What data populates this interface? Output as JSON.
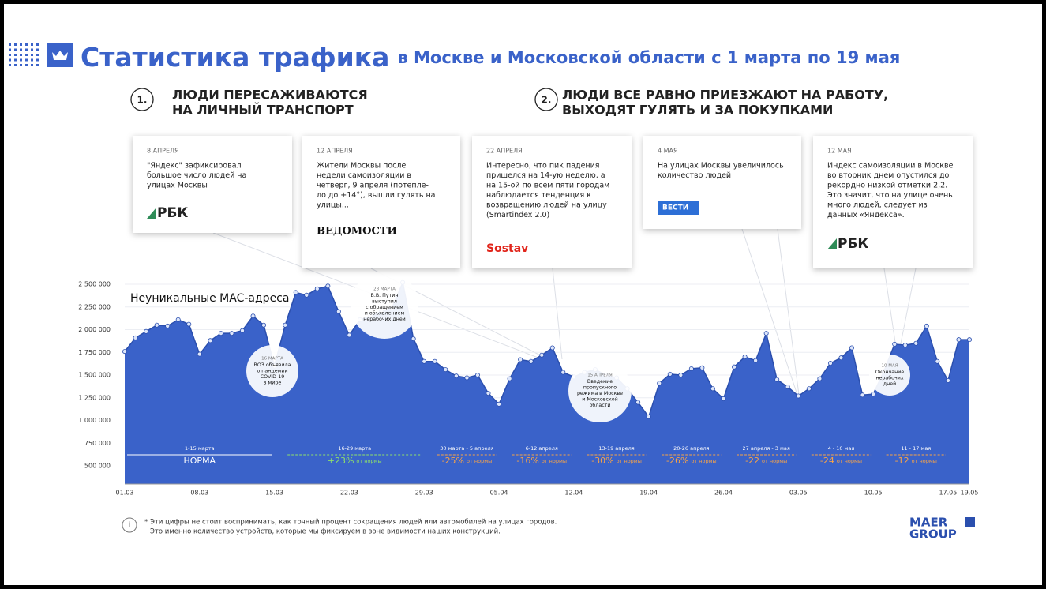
{
  "header": {
    "title": "Статистика трафика",
    "subtitle": "в Москве и Московской области с 1 марта по 19 мая"
  },
  "sections": [
    {
      "number": "1.",
      "lines": [
        "ЛЮДИ ПЕРЕСАЖИВАЮТСЯ",
        "НА ЛИЧНЫЙ ТРАНСПОРТ"
      ]
    },
    {
      "number": "2.",
      "lines": [
        "ЛЮДИ ВСЕ РАВНО ПРИЕЗЖАЮТ НА РАБОТУ,",
        "ВЫХОДЯТ ГУЛЯТЬ И ЗА ПОКУПКАМИ"
      ]
    }
  ],
  "cards": [
    {
      "date": "8 АПРЕЛЯ",
      "lines": [
        "\"Яндекс\" зафиксировал",
        "большое число людей на",
        "улицах Москвы"
      ],
      "source": "РБК"
    },
    {
      "date": "12 АПРЕЛЯ",
      "lines": [
        "Жители Москвы после",
        "недели самоизоляции в",
        "четверг, 9 апреля (потепле-",
        "ло до +14°), вышли гулять на",
        "улицы..."
      ],
      "source": "ВЕДОМОСТИ"
    },
    {
      "date": "22 АПРЕЛЯ",
      "lines": [
        "Интересно, что пик падения",
        "пришелся на 14-ую неделю, а",
        "на 15-ой по всем пяти городам",
        "наблюдается тенденция к",
        "возвращению людей на улицу",
        "(Smartindex 2.0)"
      ],
      "source": "Sostav"
    },
    {
      "date": "4 МАЯ",
      "lines": [
        "На улицах Москвы увеличилось",
        "количество людей"
      ],
      "source": "ВЕСТИ"
    },
    {
      "date": "12 МАЯ",
      "lines": [
        "Индекс самоизоляции в Москве",
        "во вторник днем опустился до",
        "рекордно низкой отметки 2,2.",
        "Это значит, что на улице очень",
        "много людей, следует из",
        "данных «Яндекса»."
      ],
      "source": "РБК"
    }
  ],
  "chart_data": {
    "type": "area",
    "categories": [
      "01.03",
      null,
      null,
      null,
      null,
      null,
      null,
      "08.03",
      null,
      null,
      null,
      null,
      null,
      null,
      "15.03",
      null,
      null,
      null,
      null,
      null,
      null,
      "22.03",
      null,
      null,
      null,
      null,
      null,
      null,
      "29.03",
      null,
      null,
      null,
      null,
      null,
      null,
      "05.04",
      null,
      null,
      null,
      null,
      null,
      null,
      "12.04",
      null,
      null,
      null,
      null,
      null,
      null,
      "19.04",
      null,
      null,
      null,
      null,
      null,
      null,
      "26.04",
      null,
      null,
      null,
      null,
      null,
      null,
      "03.05",
      null,
      null,
      null,
      null,
      null,
      null,
      "10.05",
      null,
      null,
      null,
      null,
      null,
      null,
      "17.05",
      null,
      "19.05"
    ],
    "series": [
      {
        "name": "Неуникальные MAC-адреса",
        "color": "#3a62c9",
        "values": [
          1760000,
          1910000,
          1980000,
          2050000,
          2040000,
          2110000,
          2060000,
          1730000,
          1880000,
          1960000,
          1960000,
          1990000,
          2150000,
          2050000,
          1600000,
          2050000,
          2410000,
          2380000,
          2450000,
          2480000,
          2200000,
          1940000,
          2110000,
          2150000,
          2200000,
          2240000,
          2520000,
          1900000,
          1650000,
          1650000,
          1560000,
          1490000,
          1470000,
          1500000,
          1300000,
          1180000,
          1460000,
          1670000,
          1650000,
          1720000,
          1800000,
          1530000,
          1480000,
          1530000,
          1560000,
          1500000,
          1470000,
          1350000,
          1200000,
          1040000,
          1410000,
          1510000,
          1500000,
          1570000,
          1580000,
          1350000,
          1240000,
          1590000,
          1700000,
          1660000,
          1960000,
          1450000,
          1370000,
          1270000,
          1350000,
          1460000,
          1630000,
          1690000,
          1800000,
          1280000,
          1290000,
          1540000,
          1840000,
          1830000,
          1850000,
          2040000,
          1650000,
          1440000,
          1890000,
          1890000
        ]
      }
    ],
    "ylim": [
      300000,
      2600000
    ],
    "yticks": [
      {
        "value": 500000,
        "label": "500 000"
      },
      {
        "value": 750000,
        "label": "750 000"
      },
      {
        "value": 1000000,
        "label": "1 000 000"
      },
      {
        "value": 1250000,
        "label": "1 250 000"
      },
      {
        "value": 1500000,
        "label": "1 500 000"
      },
      {
        "value": 1750000,
        "label": "1 750 000"
      },
      {
        "value": 2000000,
        "label": "2 000 000"
      },
      {
        "value": 2250000,
        "label": "2 250 000"
      },
      {
        "value": 2500000,
        "label": "2 500 000"
      }
    ],
    "grid": true,
    "annotations": [
      {
        "date": "16 МАРТА",
        "lines": [
          "ВОЗ объявила",
          "о пандемии",
          "COVID-19",
          "в мире"
        ]
      },
      {
        "date": "28 МАРТА",
        "lines": [
          "В.В. Путин",
          "выступил",
          "с обращением",
          "и объявлением",
          "нерабочих дней"
        ]
      },
      {
        "date": "15 АПРЕЛЯ",
        "lines": [
          "Введение",
          "пропускного",
          "режима в Москве",
          "и Московской",
          "области"
        ]
      },
      {
        "date": "10 МАЯ",
        "lines": [
          "Окончание",
          "нерабочих",
          "дней"
        ]
      }
    ],
    "periods": [
      {
        "label": "1-15 марта",
        "value": "НОРМА",
        "color": "#ffffff"
      },
      {
        "label": "16-29 марта",
        "value": "+23%",
        "note": "от нормы",
        "color": "#8ee06a"
      },
      {
        "label": "30 марта - 5 апреля",
        "value": "-25%",
        "note": "от нормы",
        "color": "#f7a348"
      },
      {
        "label": "6-12 апреля",
        "value": "-16%",
        "note": "от нормы",
        "color": "#f7a348"
      },
      {
        "label": "13-19 апреля",
        "value": "-30%",
        "note": "от нормы",
        "color": "#f7a348"
      },
      {
        "label": "20-26 апреля",
        "value": "-26%",
        "note": "от нормы",
        "color": "#f7a348"
      },
      {
        "label": "27 апреля - 3 мая",
        "value": "-22",
        "note": "от нормы",
        "color": "#f7a348"
      },
      {
        "label": "4 - 10 мая",
        "value": "-24",
        "note": "от нормы",
        "color": "#f7a348"
      },
      {
        "label": "11 - 17 мая",
        "value": "-12",
        "note": "от нормы",
        "color": "#f7a348"
      }
    ]
  },
  "footnote": [
    "* Эти цифры не стоит воспринимать, как точный процент сокращения людей или автомобилей на улицах городов.",
    "Это именно количество устройств, которые мы фиксируем в зоне видимости наших конструкций."
  ],
  "logo": [
    "MAER",
    "GROUP"
  ]
}
